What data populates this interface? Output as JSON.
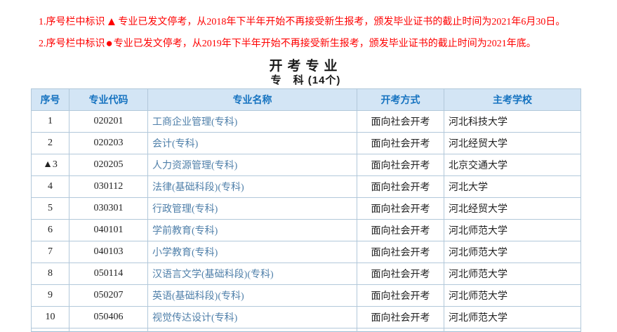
{
  "notices": [
    {
      "prefix": "1.序号栏中标识",
      "marker": "▲",
      "text": "专业已发文停考，从2018年下半年开始不再接受新生报考，颁发毕业证书的截止时间为2021年6月30日。"
    },
    {
      "prefix": "2.序号栏中标识",
      "marker": "●",
      "text": "专业已发文停考，从2019年下半年开始不再接受新生报考，颁发毕业证书的截止时间为2021年底。"
    }
  ],
  "title": "开考专业",
  "subtitle": "专　科 (14个)",
  "table": {
    "headers": [
      "序号",
      "专业代码",
      "专业名称",
      "开考方式",
      "主考学校"
    ],
    "rows": [
      {
        "index": "1",
        "code": "020201",
        "name": "工商企业管理(专科)",
        "method": "面向社会开考",
        "school": "河北科技大学"
      },
      {
        "index": "2",
        "code": "020203",
        "name": "会计(专科)",
        "method": "面向社会开考",
        "school": "河北经贸大学"
      },
      {
        "index": "▲3",
        "code": "020205",
        "name": "人力资源管理(专科)",
        "method": "面向社会开考",
        "school": "北京交通大学"
      },
      {
        "index": "4",
        "code": "030112",
        "name": "法律(基础科段)(专科)",
        "method": "面向社会开考",
        "school": "河北大学"
      },
      {
        "index": "5",
        "code": "030301",
        "name": "行政管理(专科)",
        "method": "面向社会开考",
        "school": "河北经贸大学"
      },
      {
        "index": "6",
        "code": "040101",
        "name": "学前教育(专科)",
        "method": "面向社会开考",
        "school": "河北师范大学"
      },
      {
        "index": "7",
        "code": "040103",
        "name": "小学教育(专科)",
        "method": "面向社会开考",
        "school": "河北师范大学"
      },
      {
        "index": "8",
        "code": "050114",
        "name": "汉语言文学(基础科段)(专科)",
        "method": "面向社会开考",
        "school": "河北师范大学"
      },
      {
        "index": "9",
        "code": "050207",
        "name": "英语(基础科段)(专科)",
        "method": "面向社会开考",
        "school": "河北师范大学"
      },
      {
        "index": "10",
        "code": "050406",
        "name": "视觉传达设计(专科)",
        "method": "面向社会开考",
        "school": "河北师范大学"
      }
    ]
  },
  "colors": {
    "notice_red": "#fe0000",
    "header_bg": "#d3e5f5",
    "header_text": "#1673c0",
    "border": "#b2c8da",
    "link": "#5080aa"
  }
}
